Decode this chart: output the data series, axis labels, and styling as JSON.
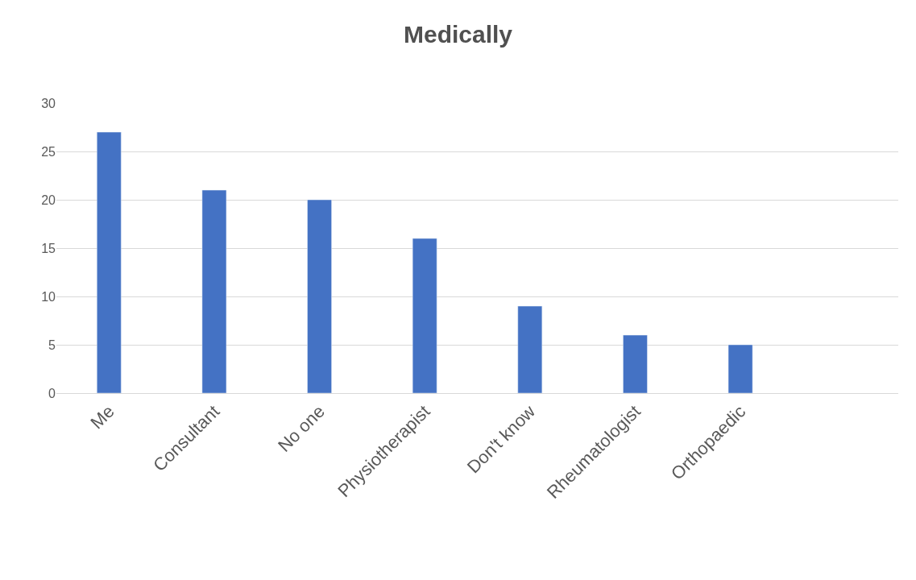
{
  "chart_data": {
    "type": "bar",
    "title": "Medically",
    "categories": [
      "Me",
      "Consultant",
      "No one",
      "Physiotherapist",
      "Don't know",
      "Rheumatologist",
      "Orthopaedic",
      null
    ],
    "values": [
      27,
      21,
      20,
      16,
      9,
      6,
      5,
      null
    ],
    "color": "#4472c4",
    "ylim": [
      0,
      30
    ],
    "yticks": [
      0,
      5,
      10,
      15,
      20,
      25,
      30
    ],
    "grid": "y",
    "legend": false
  }
}
